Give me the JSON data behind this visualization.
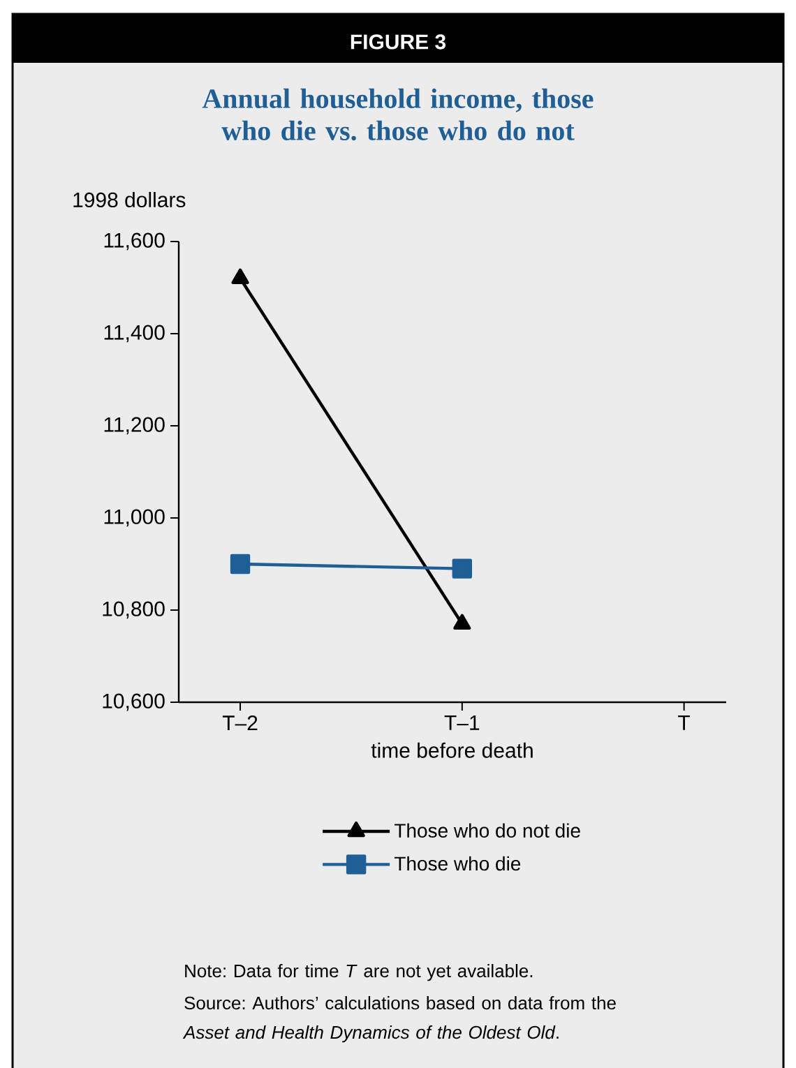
{
  "chart_data": {
    "type": "line",
    "title": "FIGURE 3",
    "subtitle": "Annual household income, those who die vs. those who do not",
    "ylabel": "1998 dollars",
    "xlabel": "time before death",
    "categories": [
      "T–2",
      "T–1",
      "T"
    ],
    "series": [
      {
        "name": "Those who do not die",
        "color": "#000000",
        "marker": "triangle",
        "values": [
          11520,
          10770,
          null
        ]
      },
      {
        "name": "Those who die",
        "color": "#1f5f96",
        "marker": "square",
        "values": [
          10900,
          10890,
          null
        ]
      }
    ],
    "ylim": [
      10600,
      11600
    ],
    "yticks": [
      {
        "value": 10600,
        "label": "10,600"
      },
      {
        "value": 10800,
        "label": "10,800"
      },
      {
        "value": 11000,
        "label": "11,000"
      },
      {
        "value": 11200,
        "label": "11,200"
      },
      {
        "value": 11400,
        "label": "11,400"
      },
      {
        "value": 11600,
        "label": "11,600"
      }
    ],
    "legend": "bottom",
    "line_style": "solid",
    "annotations": [
      "Note: Data for time *T* are not yet available.",
      "Source: Authors’ calculations based on data from the *Asset and Health Dynamics of the Oldest Old*."
    ]
  }
}
